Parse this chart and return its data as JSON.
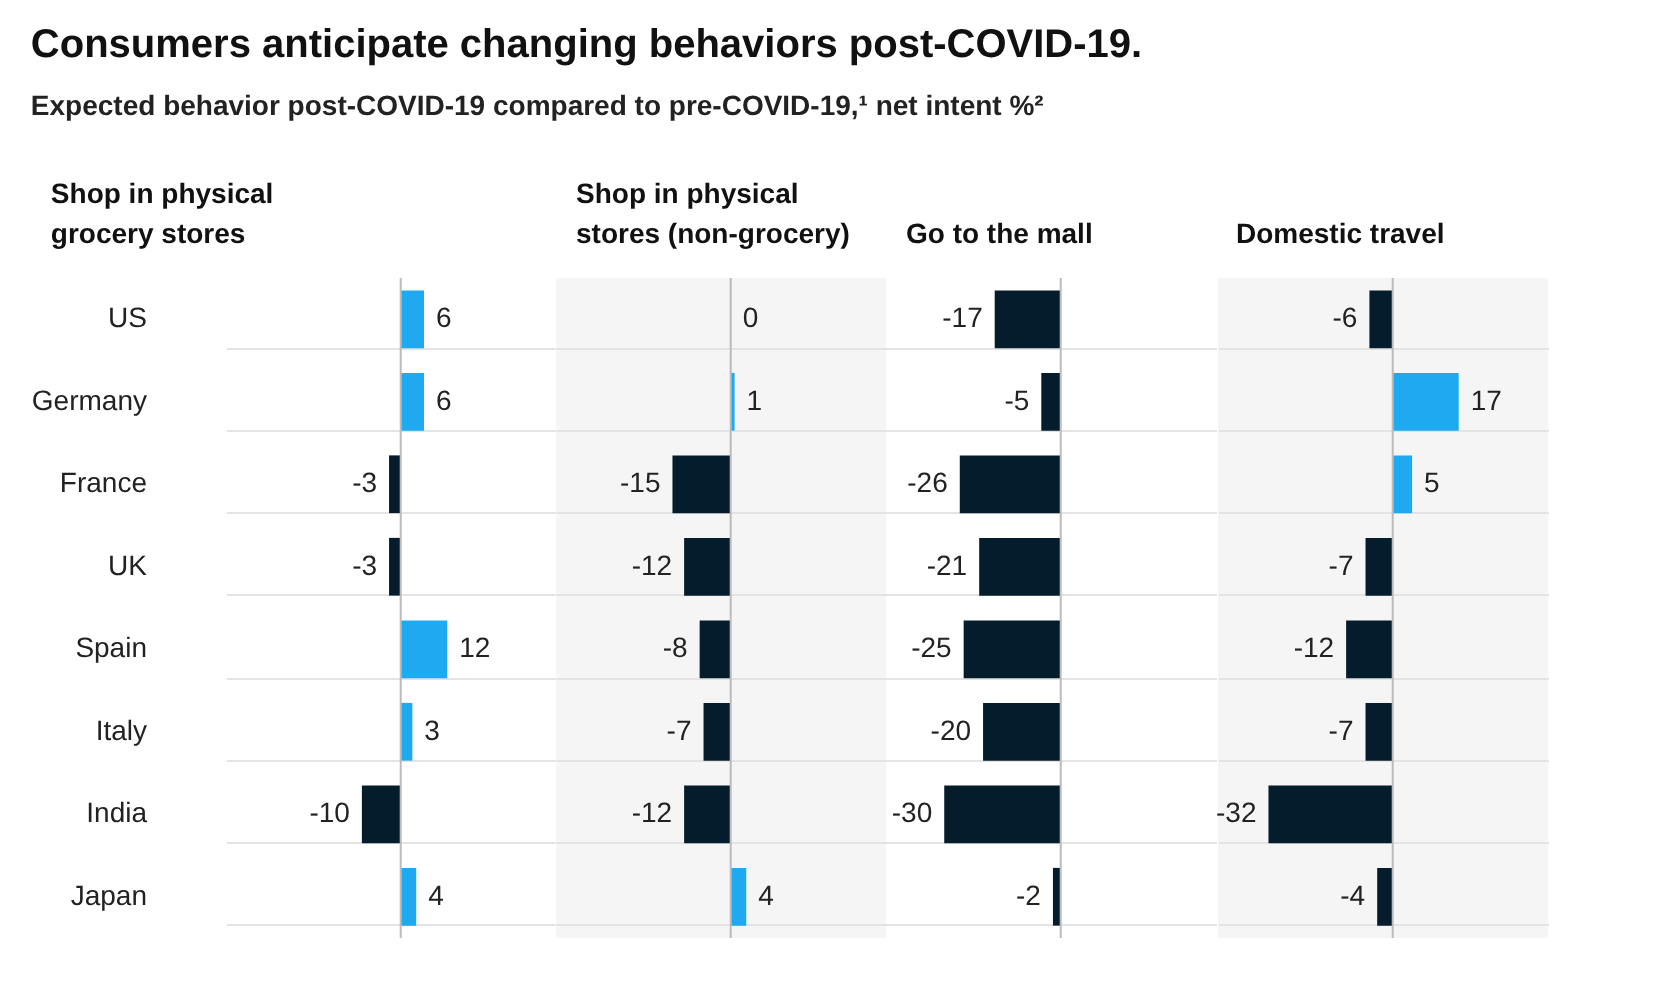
{
  "chart_data": [
    {
      "type": "other",
      "title": "Consumers anticipate changing behaviors post-COVID-19.",
      "subtitle": "Expected behavior post-COVID-19 compared to pre-COVID-19,¹ net intent %²"
    },
    {
      "type": "bar",
      "orientation": "horizontal",
      "title": "Shop in physical\ngrocery stores",
      "categories": [
        "US",
        "Germany",
        "France",
        "UK",
        "Spain",
        "Italy",
        "India",
        "Japan"
      ],
      "values": [
        6,
        6,
        -3,
        -3,
        12,
        3,
        -10,
        4
      ],
      "colors": [
        "#1fa9f0",
        "#1fa9f0",
        "#051c2c",
        "#051c2c",
        "#1fa9f0",
        "#1fa9f0",
        "#051c2c",
        "#1fa9f0"
      ],
      "data_labels": true,
      "xlim": [
        -45,
        40
      ],
      "tick_labels": "y",
      "grid": "y"
    },
    {
      "type": "bar",
      "orientation": "horizontal",
      "title": "Shop in physical\nstores (non-grocery)",
      "categories": [
        null,
        null,
        null,
        null,
        null,
        null,
        null,
        null
      ],
      "values": [
        0,
        1,
        -15,
        -12,
        -8,
        -7,
        -12,
        4
      ],
      "colors": [
        "#1fa9f0",
        "#1fa9f0",
        "#051c2c",
        "#051c2c",
        "#051c2c",
        "#051c2c",
        "#051c2c",
        "#1fa9f0"
      ],
      "data_labels": true,
      "xlim": [
        -45,
        40
      ],
      "tick_labels": false,
      "grid": "y"
    },
    {
      "type": "bar",
      "orientation": "horizontal",
      "title": "Go to the mall",
      "categories": [
        null,
        null,
        null,
        null,
        null,
        null,
        null,
        null
      ],
      "values": [
        -17,
        -5,
        -26,
        -21,
        -25,
        -20,
        -30,
        -2
      ],
      "colors": [
        "#051c2c",
        "#051c2c",
        "#051c2c",
        "#051c2c",
        "#051c2c",
        "#051c2c",
        "#051c2c",
        "#051c2c"
      ],
      "data_labels": true,
      "xlim": [
        -45,
        40
      ],
      "tick_labels": false,
      "grid": "y"
    },
    {
      "type": "bar",
      "orientation": "horizontal",
      "title": "Domestic travel",
      "categories": [
        null,
        null,
        null,
        null,
        null,
        null,
        null,
        null
      ],
      "values": [
        -6,
        17,
        5,
        -7,
        -12,
        -7,
        -32,
        -4
      ],
      "colors": [
        "#051c2c",
        "#1fa9f0",
        "#1fa9f0",
        "#051c2c",
        "#051c2c",
        "#051c2c",
        "#051c2c",
        "#051c2c"
      ],
      "data_labels": true,
      "xlim": [
        -45,
        40
      ],
      "tick_labels": false,
      "grid": "y"
    }
  ]
}
